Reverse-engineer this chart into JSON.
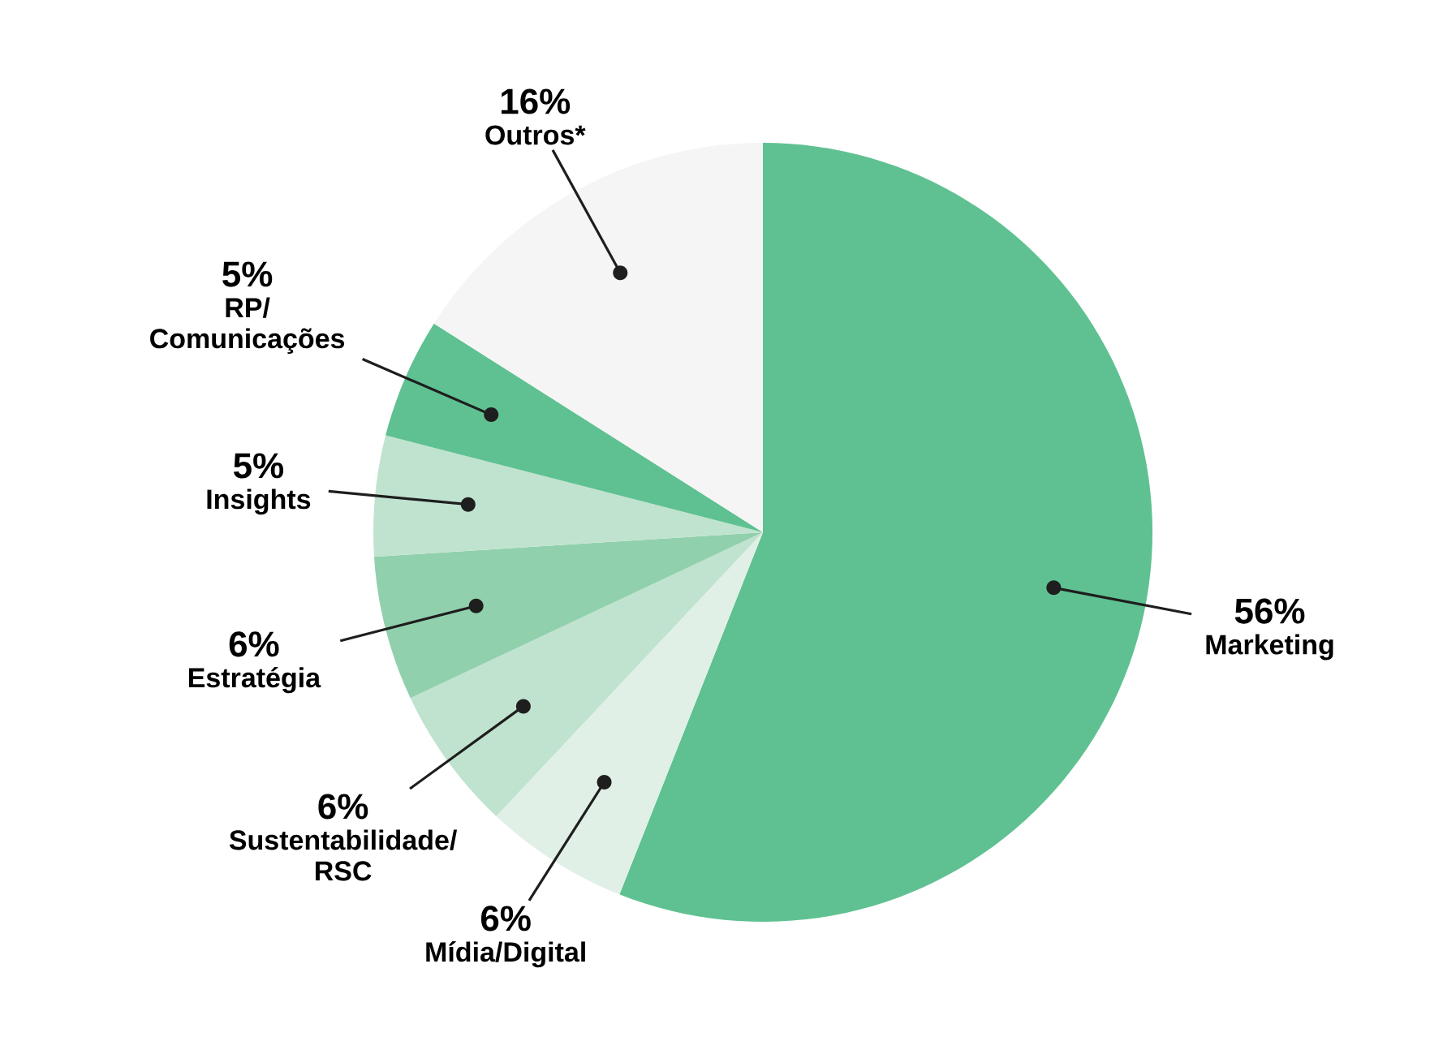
{
  "chart_data": {
    "type": "pie",
    "categories": [
      "Marketing",
      "Mídia/Digital",
      "Sustentabilidade/ RSC",
      "Estratégia",
      "Insights",
      "RP/ Comunicações",
      "Outros*"
    ],
    "values": [
      56,
      6,
      6,
      6,
      5,
      5,
      16
    ],
    "value_labels": [
      "56%",
      "6%",
      "6%",
      "6%",
      "5%",
      "5%",
      "16%"
    ],
    "colors": [
      "#5fc191",
      "#e0f0e6",
      "#c0e3cf",
      "#91d0ad",
      "#c0e3cf",
      "#5fc191",
      "#f5f5f5"
    ]
  }
}
